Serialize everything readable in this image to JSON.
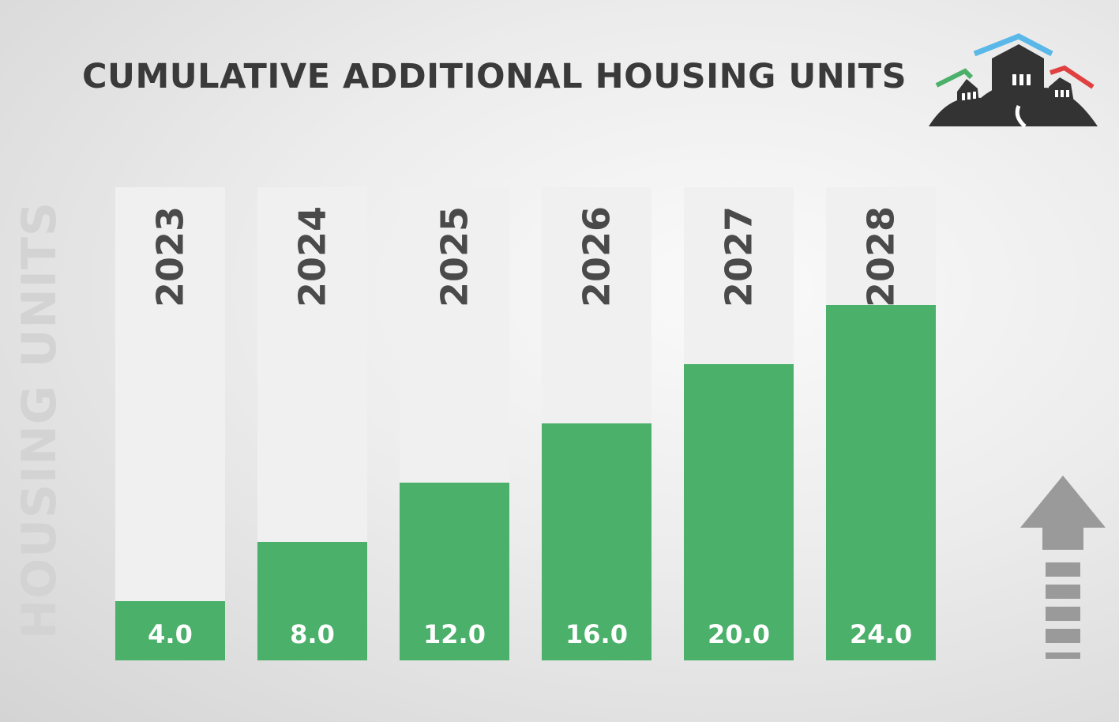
{
  "title": "CUMULATIVE ADDITIONAL HOUSING UNITS",
  "ylabel": "HOUSING UNITS",
  "icons": {
    "logo": "houses-on-hill-logo",
    "arrow": "up-arrow-icon"
  },
  "colors": {
    "bar": "#4ab06a",
    "bar_track": "#f0f0f0",
    "title": "#3a3a3a",
    "year_label": "#4a4a4a",
    "value_label": "#ffffff",
    "ylabel": "#d3d3d3",
    "arrow": "#9a9a9a"
  },
  "chart_data": {
    "type": "bar",
    "categories": [
      "2023",
      "2024",
      "2025",
      "2026",
      "2027",
      "2028"
    ],
    "values": [
      4.0,
      8.0,
      12.0,
      16.0,
      20.0,
      24.0
    ],
    "value_labels": [
      "4.0",
      "8.0",
      "12.0",
      "16.0",
      "20.0",
      "24.0"
    ],
    "title": "CUMULATIVE ADDITIONAL HOUSING UNITS",
    "xlabel": "",
    "ylabel": "HOUSING UNITS",
    "ylim": [
      0,
      24
    ],
    "grid": false
  }
}
